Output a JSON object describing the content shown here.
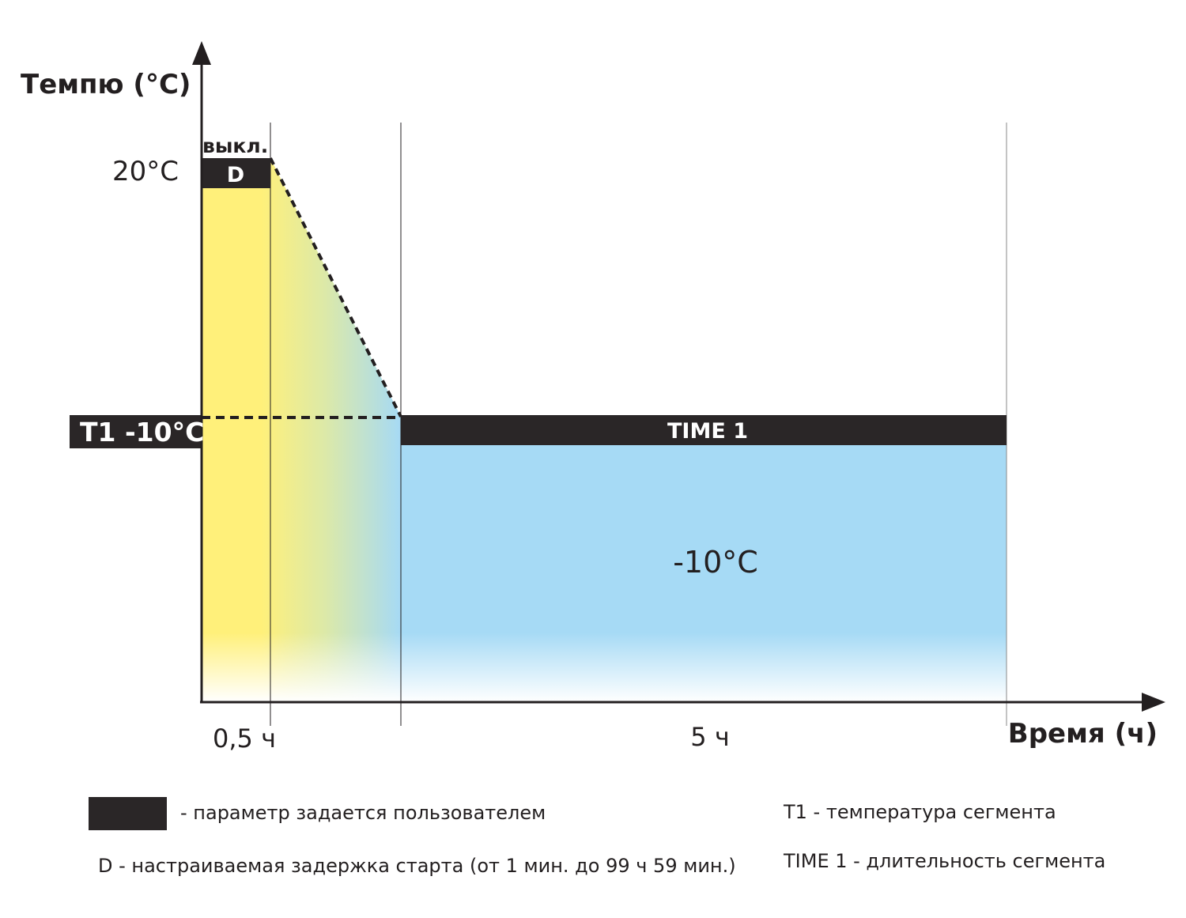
{
  "axes": {
    "y_title": "Темпю (°C)",
    "x_title": "Время (ч)"
  },
  "labels": {
    "temp_start": "20°C",
    "off_label": "выкл.",
    "delay_box": "D",
    "t1_box": "T1 -10°C",
    "time1_bar": "TIME 1",
    "segment_temp": "-10°C",
    "tick_half_hour": "0,5 ч",
    "tick_five_hours": "5 ч"
  },
  "legend": {
    "user_param": "- параметр задается пользователем",
    "delay_desc": "D - настраиваемая задержка старта (от 1 мин. до 99 ч 59 мин.)",
    "t1_desc": "T1 - температура сегмента",
    "time1_desc": "TIME 1 - длительность сегмента"
  },
  "colors": {
    "warm": "#fff07a",
    "cold": "#a6daf5",
    "user_param_fill": "#2a2627",
    "axis": "#231f20"
  }
}
